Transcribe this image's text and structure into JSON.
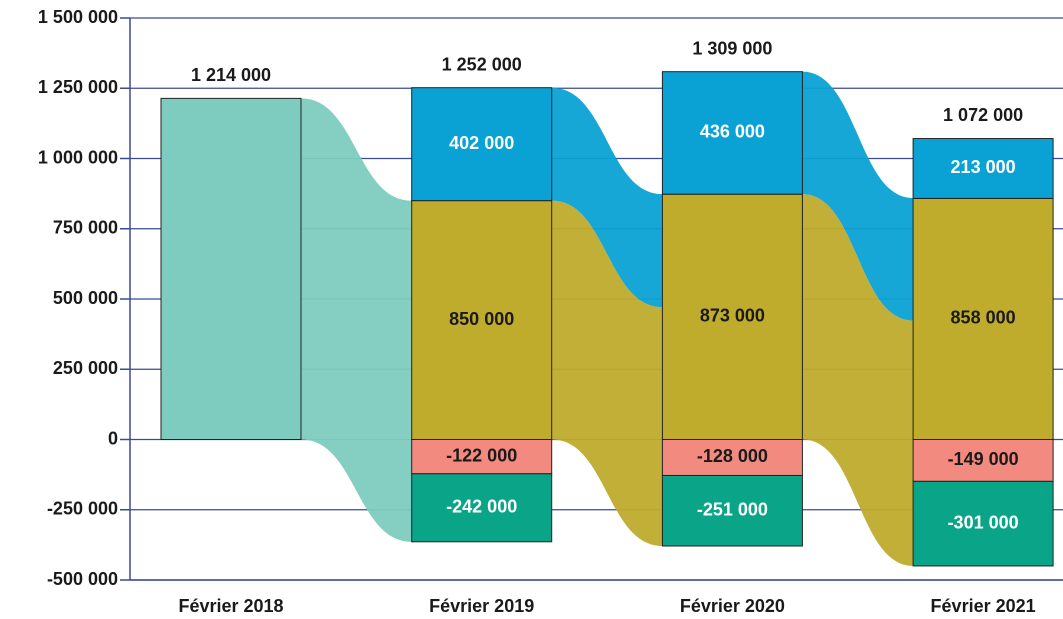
{
  "chart_data": {
    "type": "stacked-bar-flow",
    "categories": [
      "Février 2018",
      "Février 2019",
      "Février 2020",
      "Février 2021"
    ],
    "series": [
      {
        "color": "#7ecbbf",
        "label_color": "#1a1a1a",
        "values": [
          1214000,
          null,
          null,
          null
        ],
        "value_labels": [
          null,
          null,
          null,
          null
        ]
      },
      {
        "color": "#bfab2c",
        "label_color": "#1a1a1a",
        "values": [
          null,
          850000,
          873000,
          858000
        ],
        "value_labels": [
          null,
          "850 000",
          "873 000",
          "858 000"
        ]
      },
      {
        "color": "#0aa2d4",
        "label_color": "#ffffff",
        "values": [
          null,
          402000,
          436000,
          213000
        ],
        "value_labels": [
          null,
          "402 000",
          "436 000",
          "213 000"
        ]
      },
      {
        "color": "#f28a80",
        "label_color": "#1a1a1a",
        "values": [
          null,
          -122000,
          -128000,
          -149000
        ],
        "value_labels": [
          null,
          "-122 000",
          "-128 000",
          "-149 000"
        ]
      },
      {
        "color": "#0aa588",
        "label_color": "#ffffff",
        "values": [
          null,
          -242000,
          -251000,
          -301000
        ],
        "value_labels": [
          null,
          "-242 000",
          "-251 000",
          "-301 000"
        ]
      }
    ],
    "totals": [
      1214000,
      1252000,
      1309000,
      1072000
    ],
    "total_labels": [
      "1 214 000",
      "1 252 000",
      "1 309 000",
      "1 072 000"
    ],
    "ylim": [
      -500000,
      1500000
    ],
    "yticks": [
      {
        "value": -500000,
        "label": "-500 000"
      },
      {
        "value": -250000,
        "label": "-250 000"
      },
      0,
      {
        "value": 250000,
        "label": "250 000"
      },
      {
        "value": 500000,
        "label": "500 000"
      },
      {
        "value": 750000,
        "label": "750 000"
      },
      {
        "value": 1000000,
        "label": "1 000 000"
      },
      {
        "value": 1250000,
        "label": "1 250 000"
      },
      {
        "value": 1500000,
        "label": "1 500 000"
      }
    ],
    "grid": true
  }
}
